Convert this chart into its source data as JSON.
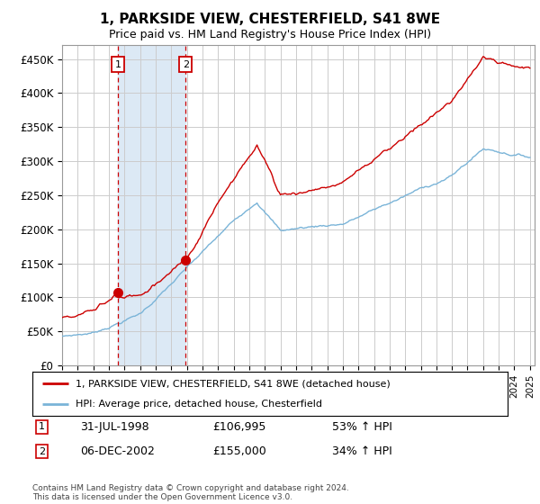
{
  "title": "1, PARKSIDE VIEW, CHESTERFIELD, S41 8WE",
  "subtitle": "Price paid vs. HM Land Registry's House Price Index (HPI)",
  "ylim": [
    0,
    470000
  ],
  "yticks": [
    0,
    50000,
    100000,
    150000,
    200000,
    250000,
    300000,
    350000,
    400000,
    450000
  ],
  "ytick_labels": [
    "£0",
    "£50K",
    "£100K",
    "£150K",
    "£200K",
    "£250K",
    "£300K",
    "£350K",
    "£400K",
    "£450K"
  ],
  "legend_label_red": "1, PARKSIDE VIEW, CHESTERFIELD, S41 8WE (detached house)",
  "legend_label_blue": "HPI: Average price, detached house, Chesterfield",
  "purchase1_date": "31-JUL-1998",
  "purchase1_price": 106995,
  "purchase1_pct": "53% ↑ HPI",
  "purchase2_date": "06-DEC-2002",
  "purchase2_price": 155000,
  "purchase2_pct": "34% ↑ HPI",
  "purchase1_year": 1998.58,
  "purchase2_year": 2002.92,
  "xmin": 1995,
  "xmax": 2025.3,
  "footnote": "Contains HM Land Registry data © Crown copyright and database right 2024.\nThis data is licensed under the Open Government Licence v3.0.",
  "grid_color": "#cccccc",
  "shade_color": "#dce9f5",
  "red_color": "#cc0000",
  "blue_color": "#7ab4d8"
}
